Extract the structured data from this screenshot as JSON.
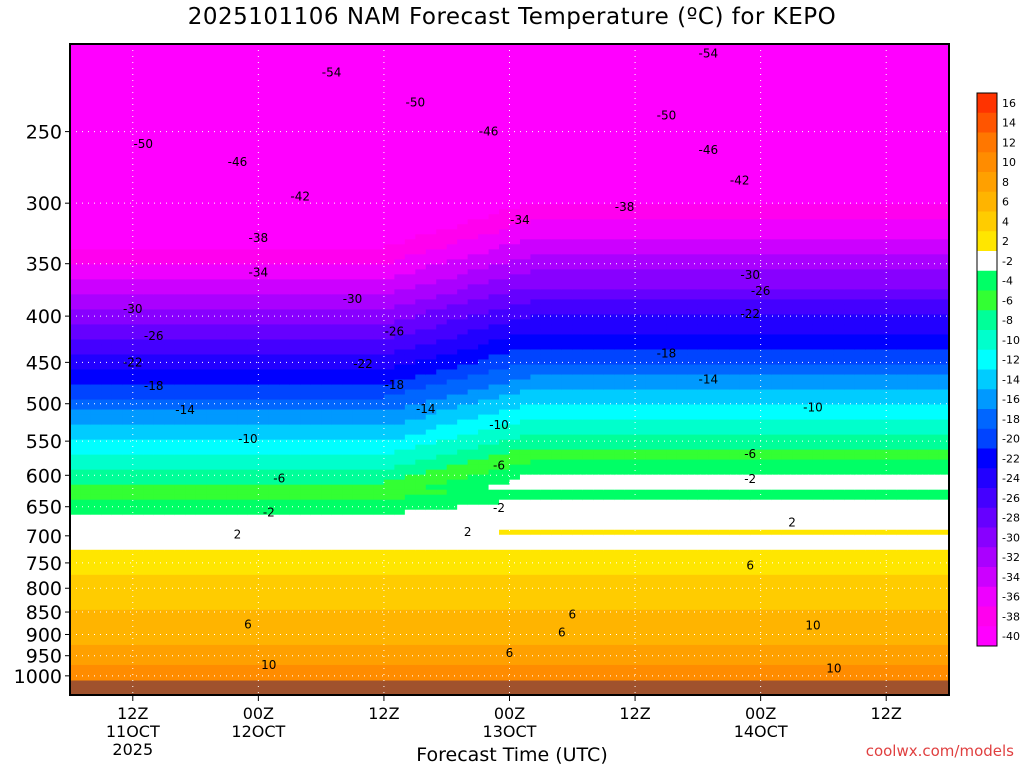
{
  "chart_data": {
    "type": "heatmap",
    "title": "2025101106 NAM Forecast Temperature (ºC) for KEPO",
    "xlabel": "Forecast Time (UTC)",
    "ylabel": "",
    "x_ticks": [
      {
        "hour": 6,
        "l1": "12Z",
        "l2": "11OCT",
        "l3": "2025"
      },
      {
        "hour": 18,
        "l1": "00Z",
        "l2": "12OCT",
        "l3": ""
      },
      {
        "hour": 30,
        "l1": "12Z",
        "l2": "",
        "l3": ""
      },
      {
        "hour": 42,
        "l1": "00Z",
        "l2": "13OCT",
        "l3": ""
      },
      {
        "hour": 54,
        "l1": "12Z",
        "l2": "",
        "l3": ""
      },
      {
        "hour": 66,
        "l1": "00Z",
        "l2": "14OCT",
        "l3": ""
      },
      {
        "hour": 78,
        "l1": "12Z",
        "l2": "",
        "l3": ""
      }
    ],
    "xlim": [
      0,
      84
    ],
    "y_ticks": [
      250,
      300,
      350,
      400,
      450,
      500,
      550,
      600,
      650,
      700,
      750,
      800,
      850,
      900,
      950,
      1000
    ],
    "ylim": [
      200,
      1050
    ],
    "y_scale": "log-pressure",
    "colorbar": {
      "levels": [
        16,
        14,
        12,
        10,
        8,
        6,
        4,
        2,
        -2,
        -4,
        -6,
        -8,
        -10,
        -12,
        -14,
        -16,
        -18,
        -20,
        -22,
        -24,
        -26,
        -28,
        -30,
        -32,
        -34,
        -36,
        -38,
        -40
      ],
      "colors": [
        "#ff3300",
        "#ff5500",
        "#ff7700",
        "#ff8c00",
        "#ffa000",
        "#ffb400",
        "#ffcc00",
        "#ffe600",
        "#ffffff",
        "#00ff66",
        "#33ff33",
        "#00ff99",
        "#00ffcc",
        "#00ffff",
        "#00ccff",
        "#0099ff",
        "#0066ff",
        "#0044ff",
        "#0000ff",
        "#2200ff",
        "#4400ff",
        "#6600ff",
        "#8800ff",
        "#aa00ff",
        "#cc00ff",
        "#ee00ff",
        "#ff00ee",
        "#ff00ff"
      ]
    },
    "profile_hour_0": [
      {
        "p": 200,
        "t": -58
      },
      {
        "p": 250,
        "t": -50
      },
      {
        "p": 300,
        "t": -43
      },
      {
        "p": 350,
        "t": -36
      },
      {
        "p": 400,
        "t": -29
      },
      {
        "p": 450,
        "t": -23
      },
      {
        "p": 500,
        "t": -17
      },
      {
        "p": 550,
        "t": -12
      },
      {
        "p": 600,
        "t": -7
      },
      {
        "p": 650,
        "t": -3
      },
      {
        "p": 700,
        "t": 1
      },
      {
        "p": 750,
        "t": 3
      },
      {
        "p": 800,
        "t": 5
      },
      {
        "p": 850,
        "t": 6
      },
      {
        "p": 900,
        "t": 7
      },
      {
        "p": 950,
        "t": 9
      },
      {
        "p": 1000,
        "t": 11
      }
    ],
    "contour_labels": [
      {
        "text": "-54",
        "h": 25,
        "p": 215
      },
      {
        "text": "-50",
        "h": 33,
        "p": 232
      },
      {
        "text": "-46",
        "h": 40,
        "p": 250
      },
      {
        "text": "-54",
        "h": 61,
        "p": 205
      },
      {
        "text": "-50",
        "h": 57,
        "p": 240
      },
      {
        "text": "-46",
        "h": 61,
        "p": 262
      },
      {
        "text": "-42",
        "h": 64,
        "p": 283
      },
      {
        "text": "-38",
        "h": 53,
        "p": 303
      },
      {
        "text": "-34",
        "h": 43,
        "p": 313
      },
      {
        "text": "-50",
        "h": 7,
        "p": 258
      },
      {
        "text": "-46",
        "h": 16,
        "p": 270
      },
      {
        "text": "-42",
        "h": 22,
        "p": 295
      },
      {
        "text": "-38",
        "h": 18,
        "p": 328
      },
      {
        "text": "-34",
        "h": 18,
        "p": 358
      },
      {
        "text": "-30",
        "h": 27,
        "p": 383
      },
      {
        "text": "-30",
        "h": 6,
        "p": 393
      },
      {
        "text": "-26",
        "h": 8,
        "p": 421
      },
      {
        "text": "-22",
        "h": 6,
        "p": 450
      },
      {
        "text": "-22",
        "h": 28,
        "p": 452
      },
      {
        "text": "-18",
        "h": 31,
        "p": 477
      },
      {
        "text": "-14",
        "h": 34,
        "p": 507
      },
      {
        "text": "-26",
        "h": 31,
        "p": 416
      },
      {
        "text": "-30",
        "h": 65,
        "p": 360
      },
      {
        "text": "-26",
        "h": 66,
        "p": 375
      },
      {
        "text": "-22",
        "h": 65,
        "p": 398
      },
      {
        "text": "-18",
        "h": 57,
        "p": 440
      },
      {
        "text": "-14",
        "h": 61,
        "p": 470
      },
      {
        "text": "-10",
        "h": 71,
        "p": 505
      },
      {
        "text": "-10",
        "h": 41,
        "p": 528
      },
      {
        "text": "-18",
        "h": 8,
        "p": 478
      },
      {
        "text": "-14",
        "h": 11,
        "p": 508
      },
      {
        "text": "-10",
        "h": 17,
        "p": 547
      },
      {
        "text": "-6",
        "h": 20,
        "p": 605
      },
      {
        "text": "-6",
        "h": 41,
        "p": 585
      },
      {
        "text": "-6",
        "h": 65,
        "p": 568
      },
      {
        "text": "-2",
        "h": 19,
        "p": 660
      },
      {
        "text": "-2",
        "h": 41,
        "p": 652
      },
      {
        "text": "-2",
        "h": 65,
        "p": 606
      },
      {
        "text": "2",
        "h": 16,
        "p": 698
      },
      {
        "text": "2",
        "h": 38,
        "p": 693
      },
      {
        "text": "2",
        "h": 69,
        "p": 677
      },
      {
        "text": "6",
        "h": 65,
        "p": 755
      },
      {
        "text": "6",
        "h": 48,
        "p": 855
      },
      {
        "text": "6",
        "h": 47,
        "p": 895
      },
      {
        "text": "6",
        "h": 42,
        "p": 943
      },
      {
        "text": "6",
        "h": 17,
        "p": 877
      },
      {
        "text": "10",
        "h": 19,
        "p": 973
      },
      {
        "text": "10",
        "h": 71,
        "p": 880
      },
      {
        "text": "10",
        "h": 73,
        "p": 981
      }
    ]
  },
  "credit": "coolwx.com/models"
}
